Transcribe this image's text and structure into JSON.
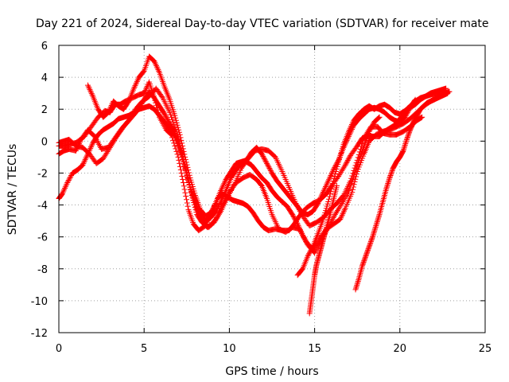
{
  "chart_data": {
    "type": "scatter",
    "title": "Day 221 of 2024, Sidereal Day-to-day VTEC variation (SDTVAR) for receiver mate",
    "xlabel": "GPS time / hours",
    "ylabel": "SDTVAR / TECUs",
    "xlim": [
      0,
      25
    ],
    "ylim": [
      -12,
      6
    ],
    "xticks": [
      0,
      5,
      10,
      15,
      20,
      25
    ],
    "yticks": [
      -12,
      -10,
      -8,
      -6,
      -4,
      -2,
      0,
      2,
      4,
      6
    ],
    "grid": true,
    "marker": "+",
    "color": "#ff0000",
    "series": [
      {
        "x": [
          0.0,
          0.3,
          0.6,
          1.0,
          1.5,
          1.9,
          2.3,
          2.7,
          3.0,
          3.3,
          3.6,
          3.9,
          4.3,
          4.7,
          5.0,
          5.3,
          5.6,
          5.9,
          6.3,
          6.6,
          7.0,
          7.3,
          7.6,
          7.9,
          8.2,
          8.6,
          9.0,
          9.3,
          9.6,
          9.9,
          10.2,
          10.5,
          10.8,
          11.1,
          11.4,
          11.7,
          12.0,
          12.3,
          12.7,
          13.1,
          13.5,
          13.8,
          14.1,
          14.5,
          14.9,
          15.3,
          15.7,
          16.0,
          16.4,
          16.8,
          17.1,
          17.5,
          17.8,
          18.1,
          18.4,
          18.8,
          19.1,
          19.4,
          19.7,
          20.0,
          20.3,
          20.6,
          20.9,
          21.2,
          21.5,
          21.8,
          22.1,
          22.4,
          22.8
        ],
        "y": [
          -0.3,
          -0.3,
          -0.2,
          -0.1,
          0.3,
          0.9,
          1.5,
          1.9,
          1.8,
          2.3,
          2.3,
          2.5,
          2.7,
          2.9,
          3.0,
          3.7,
          2.7,
          1.5,
          0.7,
          0.4,
          -1.0,
          -2.6,
          -4.3,
          -5.2,
          -5.6,
          -5.3,
          -4.4,
          -3.6,
          -3.3,
          -3.5,
          -3.7,
          -3.8,
          -3.9,
          -4.1,
          -4.5,
          -5.0,
          -5.4,
          -5.6,
          -5.5,
          -5.6,
          -5.6,
          -5.2,
          -4.7,
          -4.2,
          -3.9,
          -3.7,
          -3.3,
          -2.8,
          -2.2,
          -1.5,
          -0.9,
          -0.3,
          0.2,
          0.3,
          0.3,
          0.3,
          0.6,
          0.8,
          1.0,
          1.4,
          1.8,
          2.1,
          2.3,
          2.6,
          2.8,
          2.9,
          3.0,
          3.1,
          3.0
        ]
      },
      {
        "x": [
          0.0,
          0.3,
          0.6,
          1.0,
          1.3,
          1.7,
          2.1,
          2.5,
          2.9,
          3.3,
          3.7,
          4.1,
          4.5,
          4.9,
          5.3,
          5.7,
          6.1,
          6.5,
          6.9,
          7.2,
          7.5,
          7.8,
          8.1,
          8.4,
          8.8,
          9.2,
          9.6,
          10.0,
          10.4,
          10.8,
          11.2,
          11.6,
          11.9,
          12.2,
          12.5,
          12.9,
          13.3,
          13.7,
          14.1,
          14.5,
          14.9,
          15.3,
          15.7,
          16.1,
          16.5,
          16.8,
          17.2,
          17.5,
          17.9,
          18.2,
          18.6,
          19.0,
          19.4,
          19.8,
          20.2,
          20.6,
          21.0,
          21.4,
          21.8,
          22.2,
          22.6,
          22.9
        ],
        "y": [
          -0.8,
          -0.6,
          -0.5,
          -0.6,
          0.1,
          0.7,
          0.3,
          -0.5,
          -0.4,
          0.2,
          0.8,
          1.3,
          2.0,
          2.5,
          2.8,
          3.3,
          2.7,
          1.8,
          0.6,
          -0.6,
          -2.0,
          -3.4,
          -4.6,
          -5.1,
          -5.4,
          -4.9,
          -4.0,
          -3.2,
          -2.6,
          -2.3,
          -2.1,
          -2.4,
          -2.8,
          -3.6,
          -4.6,
          -5.5,
          -5.7,
          -5.4,
          -5.5,
          -6.3,
          -6.8,
          -6.1,
          -5.5,
          -5.2,
          -4.9,
          -4.2,
          -3.2,
          -1.9,
          -0.8,
          0.0,
          0.4,
          0.6,
          0.7,
          0.9,
          1.1,
          1.4,
          1.8,
          2.2,
          2.5,
          2.8,
          3.0,
          3.1
        ]
      },
      {
        "x": [
          0.0,
          0.3,
          0.6,
          1.0,
          1.4,
          1.8,
          2.2,
          2.6,
          3.0,
          3.4,
          3.8,
          4.2,
          4.6,
          5.0,
          5.3,
          5.6,
          5.9,
          6.2,
          6.5,
          6.8,
          7.1,
          7.4,
          7.7,
          8.0,
          8.3,
          8.7,
          9.1,
          9.5,
          9.9,
          10.3,
          10.7,
          11.1,
          11.5,
          11.9,
          12.3,
          12.7,
          13.1,
          13.5,
          13.9,
          14.3,
          14.7,
          15.1,
          15.5,
          15.9,
          16.3,
          16.7,
          17.1,
          17.5,
          17.9,
          18.3,
          18.7,
          19.0,
          19.4,
          19.8,
          20.2,
          20.6,
          21.0,
          21.3
        ],
        "y": [
          -0.1,
          0.0,
          0.1,
          -0.3,
          -0.4,
          -0.8,
          -1.4,
          -1.1,
          -0.4,
          0.3,
          0.9,
          1.4,
          1.9,
          2.6,
          3.1,
          2.7,
          2.2,
          1.7,
          1.1,
          0.6,
          -0.4,
          -1.6,
          -2.9,
          -4.0,
          -4.9,
          -5.4,
          -5.1,
          -4.4,
          -3.5,
          -2.7,
          -1.7,
          -1.1,
          -0.6,
          -0.5,
          -0.6,
          -1.0,
          -1.9,
          -2.9,
          -3.9,
          -4.7,
          -5.3,
          -5.1,
          -4.8,
          -4.3,
          -3.9,
          -3.4,
          -2.5,
          -1.2,
          0.2,
          0.9,
          0.9,
          0.5,
          0.4,
          0.4,
          0.6,
          0.9,
          1.3,
          1.5
        ]
      },
      {
        "x": [
          0.0,
          0.2,
          0.5,
          0.8,
          1.1,
          1.4,
          1.7,
          2.0,
          2.3,
          2.6,
          2.9,
          3.2,
          3.5,
          3.8,
          4.1,
          4.4,
          4.7,
          5.0,
          5.3,
          5.6,
          5.9,
          6.2,
          6.5,
          6.8,
          7.1,
          7.4,
          7.7,
          8.0,
          8.3,
          8.6,
          8.9,
          9.2,
          9.5,
          9.8,
          10.1,
          10.4,
          10.7,
          11.0,
          11.3,
          11.6,
          11.9,
          12.2,
          12.5,
          12.8,
          13.1,
          13.4,
          13.7,
          14.0,
          14.3,
          14.6,
          15.0,
          15.4,
          15.8,
          16.2,
          16.6,
          17.0,
          17.3,
          17.6,
          17.9,
          18.2,
          18.5,
          18.8
        ],
        "y": [
          -3.6,
          -3.3,
          -2.6,
          -2.0,
          -1.8,
          -1.5,
          -0.8,
          -0.1,
          0.4,
          0.7,
          0.9,
          1.1,
          1.4,
          1.5,
          1.6,
          1.8,
          2.0,
          2.1,
          2.2,
          2.0,
          1.6,
          1.2,
          0.8,
          0.3,
          -0.6,
          -1.7,
          -2.9,
          -3.8,
          -4.6,
          -5.0,
          -4.8,
          -4.4,
          -3.8,
          -3.1,
          -2.3,
          -1.8,
          -1.4,
          -1.3,
          -1.5,
          -1.9,
          -2.3,
          -2.6,
          -3.1,
          -3.5,
          -3.8,
          -4.1,
          -4.6,
          -5.2,
          -5.9,
          -6.5,
          -7.0,
          -6.2,
          -5.4,
          -4.6,
          -3.9,
          -3.1,
          -2.2,
          -1.2,
          -0.3,
          0.6,
          1.2,
          1.5
        ]
      },
      {
        "x": [
          1.7,
          2.0,
          2.3,
          2.6,
          2.9,
          3.2,
          3.5,
          3.8,
          4.1,
          4.4,
          4.7,
          5.0,
          5.3,
          5.6,
          5.9,
          6.2,
          6.5,
          6.8,
          7.1,
          7.4,
          7.7,
          8.0,
          8.3,
          8.6,
          8.9,
          9.2,
          9.5,
          9.8,
          10.1,
          10.4,
          10.7,
          11.0,
          11.3,
          11.6,
          11.9,
          12.2,
          12.5,
          12.8,
          13.1,
          13.4,
          13.7,
          14.0,
          14.3,
          14.6,
          14.9,
          15.2,
          15.5,
          15.8,
          16.1,
          16.4,
          16.7,
          17.0,
          17.3,
          17.6,
          17.9,
          18.2,
          18.5,
          18.8,
          19.1,
          19.4,
          19.7,
          20.0,
          20.3,
          20.6,
          20.9
        ],
        "y": [
          3.5,
          2.8,
          2.0,
          1.5,
          1.8,
          2.5,
          2.2,
          2.0,
          2.5,
          3.3,
          4.0,
          4.4,
          5.3,
          5.0,
          4.3,
          3.4,
          2.6,
          1.6,
          0.4,
          -1.0,
          -2.3,
          -3.4,
          -4.3,
          -4.7,
          -4.5,
          -3.9,
          -3.1,
          -2.4,
          -1.9,
          -1.4,
          -1.3,
          -1.2,
          -0.7,
          -0.4,
          -0.8,
          -1.4,
          -2.0,
          -2.5,
          -2.9,
          -3.3,
          -3.7,
          -4.1,
          -4.5,
          -4.6,
          -4.4,
          -3.9,
          -3.2,
          -2.5,
          -1.8,
          -1.2,
          -0.4,
          0.3,
          1.0,
          1.4,
          1.7,
          2.0,
          2.1,
          2.0,
          1.8,
          1.5,
          1.3,
          1.2,
          1.5,
          2.1,
          2.6
        ]
      },
      {
        "x": [
          14.0,
          14.3,
          14.6,
          14.9,
          15.2,
          15.5,
          15.8,
          16.1,
          16.4,
          16.7,
          17.0,
          17.3,
          17.6,
          17.9,
          18.2,
          18.5,
          18.8,
          19.1,
          19.4,
          19.7,
          20.0,
          20.3,
          20.6,
          20.9,
          21.2,
          21.5,
          21.8,
          22.1,
          22.4,
          22.7
        ],
        "y": [
          -8.4,
          -8.0,
          -7.2,
          -6.6,
          -5.8,
          -4.9,
          -3.8,
          -2.5,
          -1.3,
          -0.2,
          0.6,
          1.3,
          1.7,
          2.0,
          2.2,
          2.0,
          2.2,
          2.3,
          2.1,
          1.8,
          1.7,
          1.9,
          2.2,
          2.5,
          2.7,
          2.8,
          3.0,
          3.1,
          3.2,
          3.3
        ]
      },
      {
        "x": [
          14.7,
          14.8,
          14.9,
          15.0,
          15.1,
          15.25,
          15.4,
          15.55,
          15.7,
          15.9,
          16.1,
          16.3
        ],
        "y": [
          -10.8,
          -10.0,
          -9.2,
          -8.4,
          -7.8,
          -7.2,
          -6.6,
          -6.0,
          -5.4,
          -4.6,
          -3.7,
          -2.8
        ]
      },
      {
        "x": [
          17.4,
          17.6,
          17.8,
          18.0,
          18.2,
          18.4,
          18.6,
          18.8,
          19.0,
          19.2,
          19.4,
          19.6,
          19.8,
          20.0,
          20.2,
          20.4,
          20.6,
          20.8,
          21.0,
          21.2,
          21.4,
          21.6,
          21.8,
          22.0,
          22.2,
          22.4,
          22.6,
          22.8
        ],
        "y": [
          -9.3,
          -8.6,
          -7.8,
          -7.2,
          -6.6,
          -6.0,
          -5.3,
          -4.6,
          -3.8,
          -3.0,
          -2.3,
          -1.7,
          -1.3,
          -1.0,
          -0.6,
          0.1,
          0.7,
          1.2,
          1.6,
          2.0,
          2.2,
          2.4,
          2.5,
          2.6,
          2.7,
          2.8,
          2.9,
          3.0
        ]
      }
    ]
  }
}
